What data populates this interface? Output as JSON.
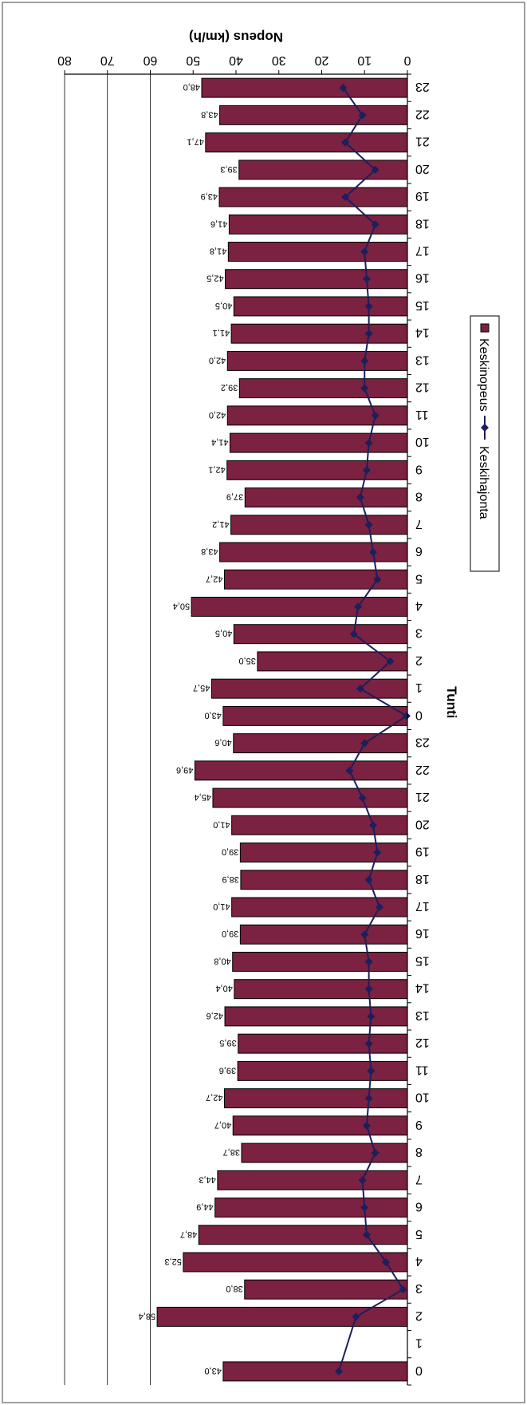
{
  "chart_data": {
    "type": "bar",
    "orientation": "horizontal, rotated 180°",
    "title": "",
    "xlabel": "Tunti",
    "ylabel": "Nopeus (km/h)",
    "ylim": [
      0,
      80
    ],
    "yticks": [
      0,
      10,
      20,
      30,
      40,
      50,
      60,
      70,
      80
    ],
    "grid": true,
    "legend_position": "top",
    "categories": [
      "0",
      "1",
      "2",
      "3",
      "4",
      "5",
      "6",
      "7",
      "8",
      "9",
      "10",
      "11",
      "12",
      "13",
      "14",
      "15",
      "16",
      "17",
      "18",
      "19",
      "20",
      "21",
      "22",
      "23",
      "0",
      "1",
      "2",
      "3",
      "4",
      "5",
      "6",
      "7",
      "8",
      "9",
      "10",
      "11",
      "12",
      "13",
      "14",
      "15",
      "16",
      "17",
      "18",
      "19",
      "20",
      "21",
      "22",
      "23"
    ],
    "series": [
      {
        "name": "Keskinopeus",
        "type": "bar",
        "color": "#7b2141",
        "values": [
          43.0,
          null,
          58.4,
          38.0,
          52.3,
          48.7,
          44.9,
          44.3,
          38.7,
          40.7,
          42.7,
          39.6,
          39.5,
          42.6,
          40.4,
          40.8,
          39.0,
          41.0,
          38.9,
          39.0,
          41.0,
          45.4,
          49.6,
          40.6,
          43.0,
          45.7,
          35.0,
          40.5,
          50.4,
          42.7,
          43.8,
          41.2,
          37.9,
          42.1,
          41.4,
          42.0,
          39.2,
          42.0,
          41.1,
          40.5,
          42.5,
          41.8,
          41.6,
          43.9,
          39.3,
          47.1,
          43.8,
          48.0
        ],
        "labels": [
          "43,0",
          "",
          "58,4",
          "38,0",
          "52,3",
          "48,7",
          "44,9",
          "44,3",
          "38,7",
          "40,7",
          "42,7",
          "39,6",
          "39,5",
          "42,6",
          "40,4",
          "40,8",
          "39,0",
          "41,0",
          "38,9",
          "39,0",
          "41,0",
          "45,4",
          "49,6",
          "40,6",
          "43,0",
          "45,7",
          "35,0",
          "40,5",
          "50,4",
          "42,7",
          "43,8",
          "41,2",
          "37,9",
          "42,1",
          "41,4",
          "42,0",
          "39,2",
          "42,0",
          "41,1",
          "40,5",
          "42,5",
          "41,8",
          "41,6",
          "43,9",
          "39,3",
          "47,1",
          "43,8",
          "48,0"
        ]
      },
      {
        "name": "Keskihajonta",
        "type": "line",
        "color": "#1c1f5c",
        "values": [
          16.0,
          null,
          12.0,
          1.0,
          5.0,
          9.5,
          10.0,
          10.5,
          7.5,
          9.5,
          9.0,
          8.5,
          9.0,
          8.5,
          9.0,
          9.0,
          10.0,
          6.5,
          9.0,
          7.0,
          8.0,
          10.5,
          13.5,
          10.0,
          0.2,
          11.0,
          4.0,
          12.5,
          11.5,
          7.0,
          8.0,
          9.0,
          11.0,
          9.5,
          9.0,
          7.5,
          10.0,
          10.0,
          9.0,
          9.0,
          9.5,
          10.0,
          7.5,
          14.5,
          7.5,
          14.5,
          10.5,
          15.0
        ]
      }
    ]
  }
}
